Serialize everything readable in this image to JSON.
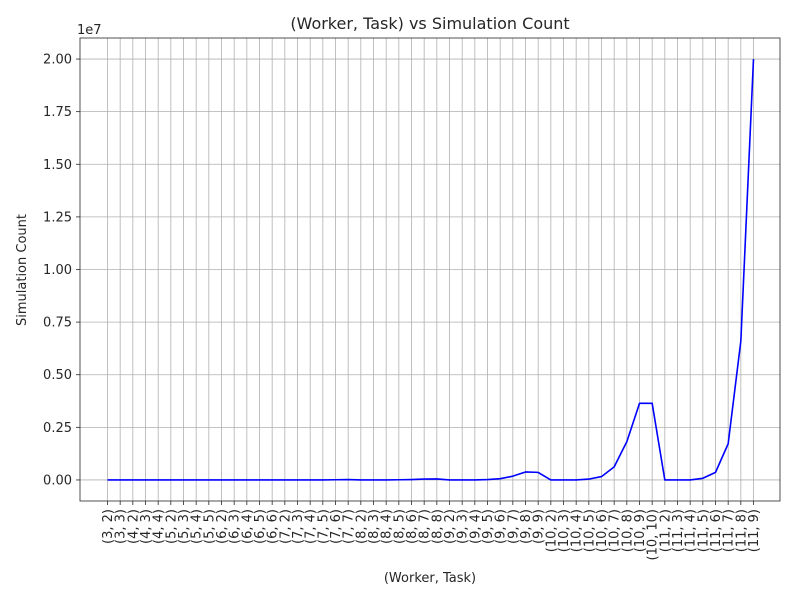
{
  "chart_data": {
    "type": "line",
    "title": "(Worker, Task) vs Simulation Count",
    "xlabel": "(Worker, Task)",
    "ylabel": "Simulation Count",
    "y_offset_label": "1e7",
    "ylim": [
      -1000000,
      21000000
    ],
    "yticks": [
      0,
      2500000,
      5000000,
      7500000,
      10000000,
      12500000,
      15000000,
      17500000,
      20000000
    ],
    "ytick_labels": [
      "0.00",
      "0.25",
      "0.50",
      "0.75",
      "1.00",
      "1.25",
      "1.50",
      "1.75",
      "2.00"
    ],
    "grid": true,
    "line_color": "#0000ff",
    "categories": [
      "(3, 2)",
      "(3, 3)",
      "(4, 2)",
      "(4, 3)",
      "(4, 4)",
      "(5, 2)",
      "(5, 3)",
      "(5, 4)",
      "(5, 5)",
      "(6, 2)",
      "(6, 3)",
      "(6, 4)",
      "(6, 5)",
      "(6, 6)",
      "(7, 2)",
      "(7, 3)",
      "(7, 4)",
      "(7, 5)",
      "(7, 6)",
      "(7, 7)",
      "(8, 2)",
      "(8, 3)",
      "(8, 4)",
      "(8, 5)",
      "(8, 6)",
      "(8, 7)",
      "(8, 8)",
      "(9, 2)",
      "(9, 3)",
      "(9, 4)",
      "(9, 5)",
      "(9, 6)",
      "(9, 7)",
      "(9, 8)",
      "(9, 9)",
      "(10, 2)",
      "(10, 3)",
      "(10, 4)",
      "(10, 5)",
      "(10, 6)",
      "(10, 7)",
      "(10, 8)",
      "(10, 9)",
      "(10, 10)",
      "(11, 2)",
      "(11, 3)",
      "(11, 4)",
      "(11, 5)",
      "(11, 6)",
      "(11, 7)",
      "(11, 8)",
      "(11, 9)"
    ],
    "series": [
      {
        "values": [
          0,
          0,
          0,
          0,
          0,
          0,
          0,
          0,
          0,
          0,
          0,
          0,
          0,
          0,
          0,
          0,
          0,
          0,
          10000,
          20000,
          0,
          0,
          0,
          10000,
          20000,
          40000,
          50000,
          0,
          0,
          0,
          20000,
          60000,
          180000,
          380000,
          360000,
          0,
          0,
          0,
          40000,
          160000,
          620000,
          1820000,
          3640000,
          3640000,
          0,
          0,
          0,
          80000,
          360000,
          1720000,
          6600000,
          20000000
        ]
      }
    ]
  }
}
